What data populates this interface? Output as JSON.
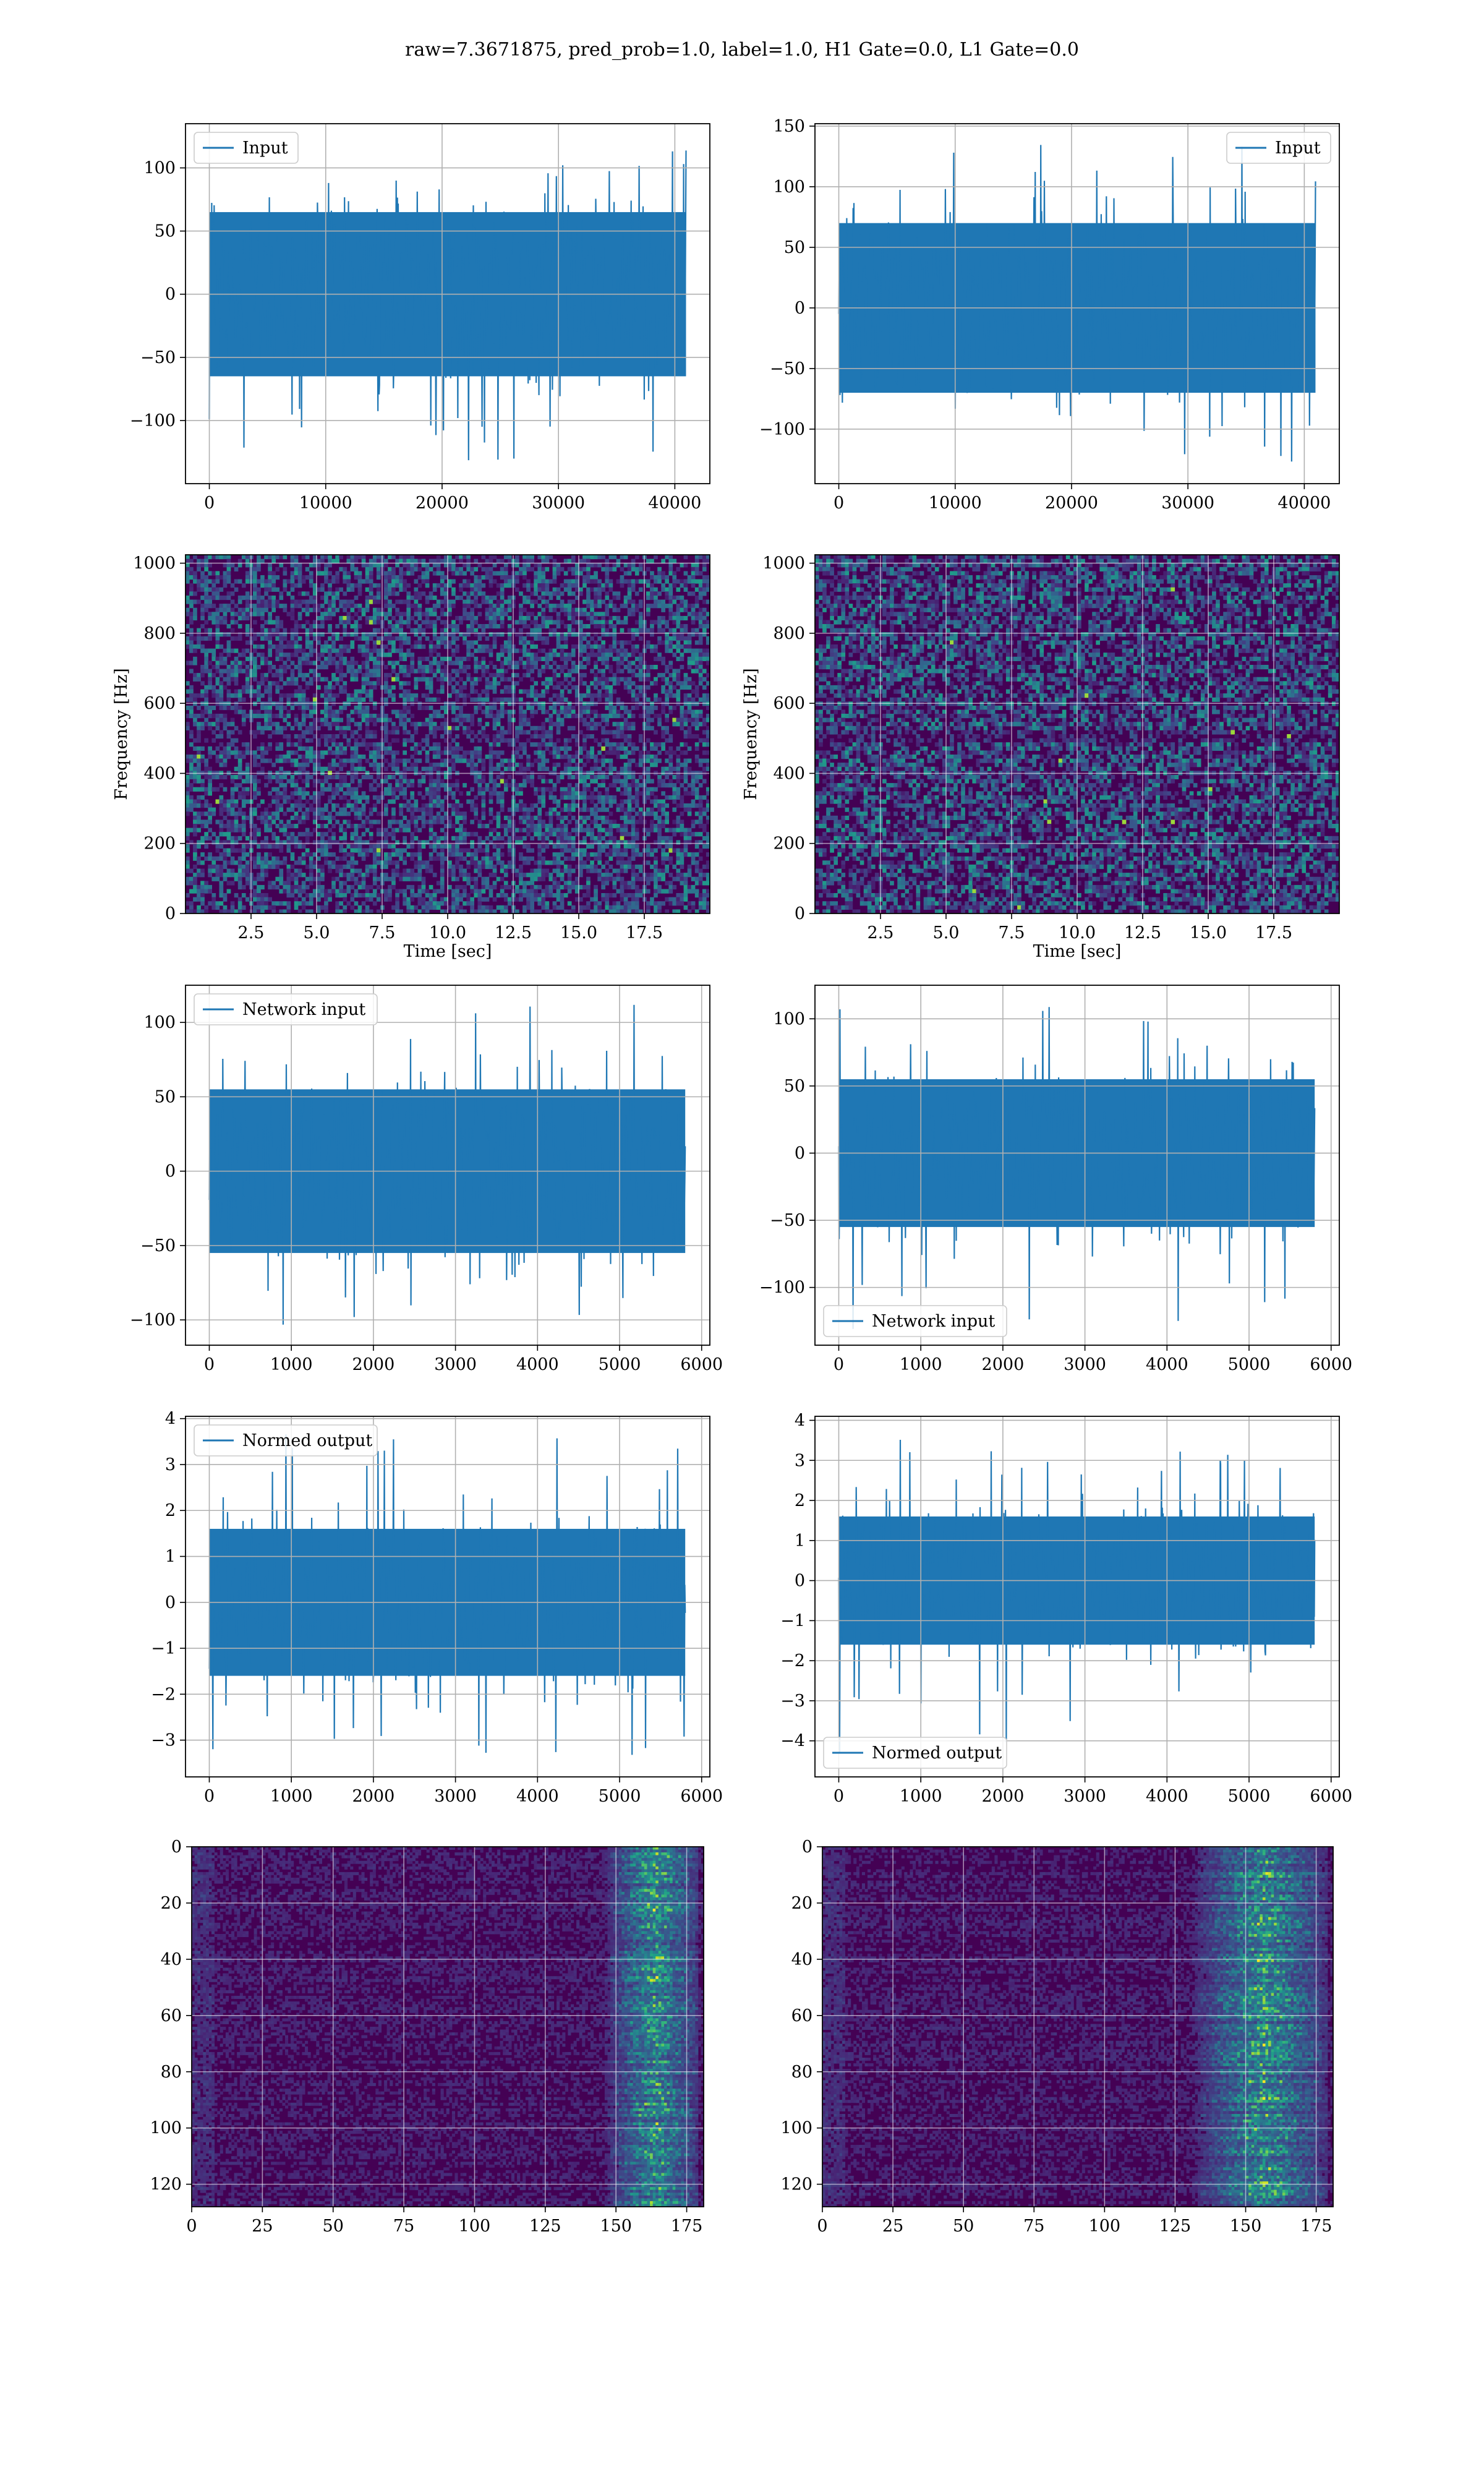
{
  "figure": {
    "title": "raw=7.3671875, pred_prob=1.0, label=1.0, H1 Gate=0.0, L1 Gate=0.0",
    "colors": {
      "line": "#1f77b4",
      "grid": "#b0b0b0",
      "viridis_low": "#440154",
      "viridis_mid": "#21918c",
      "viridis_high": "#fde725"
    }
  },
  "chart_data": [
    {
      "id": "h1-input",
      "type": "line",
      "title": "",
      "xlabel": "",
      "ylabel": "",
      "xlim": [
        -2048,
        43008
      ],
      "ylim": [
        -150,
        135
      ],
      "xticks": [
        0,
        10000,
        20000,
        30000,
        40000
      ],
      "yticks": [
        -100,
        -50,
        0,
        50,
        100
      ],
      "grid": true,
      "legend": "upper left",
      "series": [
        {
          "name": "Input",
          "n_points": 40960,
          "x_range": [
            0,
            40960
          ],
          "typical_envelope": [
            -65,
            65
          ],
          "peak_min": -132,
          "peak_max": 123
        }
      ]
    },
    {
      "id": "l1-input",
      "type": "line",
      "title": "",
      "xlabel": "",
      "ylabel": "",
      "xlim": [
        -2048,
        43008
      ],
      "ylim": [
        -145,
        152
      ],
      "xticks": [
        0,
        10000,
        20000,
        30000,
        40000
      ],
      "yticks": [
        -100,
        -50,
        0,
        50,
        100,
        150
      ],
      "grid": true,
      "legend": "upper right",
      "series": [
        {
          "name": "Input",
          "n_points": 40960,
          "x_range": [
            0,
            40960
          ],
          "typical_envelope": [
            -70,
            70
          ],
          "peak_min": -130,
          "peak_max": 141
        }
      ]
    },
    {
      "id": "h1-spectrogram",
      "type": "heatmap",
      "title": "",
      "xlabel": "Time [sec]",
      "ylabel": "Frequency [Hz]",
      "xlim": [
        0,
        20
      ],
      "ylim": [
        0,
        1024
      ],
      "xticks": [
        2.5,
        5.0,
        7.5,
        10.0,
        12.5,
        15.0,
        17.5
      ],
      "yticks": [
        0,
        200,
        400,
        600,
        800,
        1000
      ],
      "grid": true,
      "colormap": "viridis"
    },
    {
      "id": "l1-spectrogram",
      "type": "heatmap",
      "title": "",
      "xlabel": "Time [sec]",
      "ylabel": "Frequency [Hz]",
      "xlim": [
        0,
        20
      ],
      "ylim": [
        0,
        1024
      ],
      "xticks": [
        2.5,
        5.0,
        7.5,
        10.0,
        12.5,
        15.0,
        17.5
      ],
      "yticks": [
        0,
        200,
        400,
        600,
        800,
        1000
      ],
      "grid": true,
      "colormap": "viridis"
    },
    {
      "id": "h1-network-input",
      "type": "line",
      "title": "",
      "xlabel": "",
      "ylabel": "",
      "xlim": [
        -290,
        6100
      ],
      "ylim": [
        -117,
        125
      ],
      "xticks": [
        0,
        1000,
        2000,
        3000,
        4000,
        5000,
        6000
      ],
      "yticks": [
        -100,
        -50,
        0,
        50,
        100
      ],
      "grid": true,
      "legend": "upper left",
      "series": [
        {
          "name": "Network input",
          "n_points": 5800,
          "x_range": [
            0,
            5800
          ],
          "typical_envelope": [
            -55,
            55
          ],
          "peak_min": -105,
          "peak_max": 115
        }
      ]
    },
    {
      "id": "l1-network-input",
      "type": "line",
      "title": "",
      "xlabel": "",
      "ylabel": "",
      "xlim": [
        -290,
        6100
      ],
      "ylim": [
        -143,
        125
      ],
      "xticks": [
        0,
        1000,
        2000,
        3000,
        4000,
        5000,
        6000
      ],
      "yticks": [
        -100,
        -50,
        0,
        50,
        100
      ],
      "grid": true,
      "legend": "lower left",
      "series": [
        {
          "name": "Network input",
          "n_points": 5800,
          "x_range": [
            0,
            5800
          ],
          "typical_envelope": [
            -55,
            55
          ],
          "peak_min": -137,
          "peak_max": 113
        }
      ]
    },
    {
      "id": "h1-normed-output",
      "type": "line",
      "title": "",
      "xlabel": "",
      "ylabel": "",
      "xlim": [
        -290,
        6100
      ],
      "ylim": [
        -3.8,
        4.05
      ],
      "xticks": [
        0,
        1000,
        2000,
        3000,
        4000,
        5000,
        6000
      ],
      "yticks": [
        -3,
        -2,
        -1,
        0,
        1,
        2,
        3,
        4
      ],
      "grid": true,
      "legend": "upper left",
      "series": [
        {
          "name": "Normed output",
          "n_points": 5800,
          "x_range": [
            0,
            5800
          ],
          "typical_envelope": [
            -1.6,
            1.6
          ],
          "peak_min": -3.5,
          "peak_max": 3.7
        }
      ]
    },
    {
      "id": "l1-normed-output",
      "type": "line",
      "title": "",
      "xlabel": "",
      "ylabel": "",
      "xlim": [
        -290,
        6100
      ],
      "ylim": [
        -4.9,
        4.1
      ],
      "xticks": [
        0,
        1000,
        2000,
        3000,
        4000,
        5000,
        6000
      ],
      "yticks": [
        -4,
        -3,
        -2,
        -1,
        0,
        1,
        2,
        3,
        4
      ],
      "grid": true,
      "legend": "lower left",
      "series": [
        {
          "name": "Normed output",
          "n_points": 5800,
          "x_range": [
            0,
            5800
          ],
          "typical_envelope": [
            -1.6,
            1.6
          ],
          "peak_min": -4.4,
          "peak_max": 3.6
        }
      ]
    },
    {
      "id": "h1-feature-map",
      "type": "heatmap",
      "title": "",
      "xlabel": "",
      "ylabel": "",
      "xlim": [
        0,
        181
      ],
      "ylim": [
        128,
        0
      ],
      "xticks": [
        0,
        25,
        50,
        75,
        100,
        125,
        150,
        175
      ],
      "yticks": [
        0,
        20,
        40,
        60,
        80,
        100,
        120
      ],
      "grid": true,
      "colormap": "viridis",
      "hotspot_columns": [
        155,
        172
      ]
    },
    {
      "id": "l1-feature-map",
      "type": "heatmap",
      "title": "",
      "xlabel": "",
      "ylabel": "",
      "xlim": [
        0,
        181
      ],
      "ylim": [
        128,
        0
      ],
      "xticks": [
        0,
        25,
        50,
        75,
        100,
        125,
        150,
        175
      ],
      "yticks": [
        0,
        20,
        40,
        60,
        80,
        100,
        120
      ],
      "grid": true,
      "colormap": "viridis",
      "hotspot_columns": [
        140,
        172
      ]
    }
  ]
}
